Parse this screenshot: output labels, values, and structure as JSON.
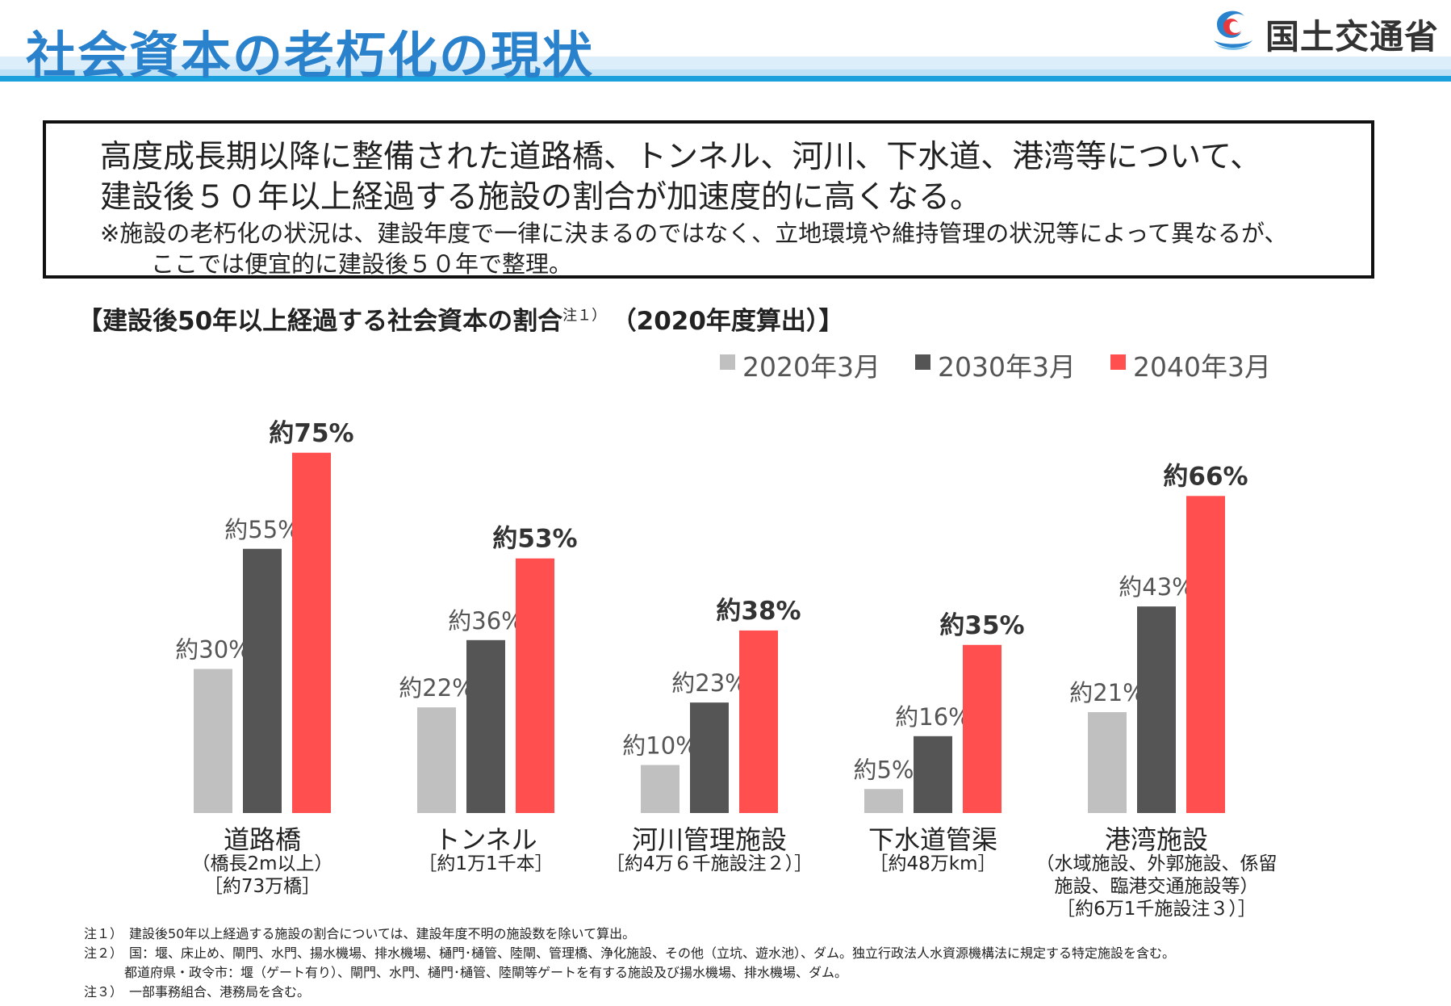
{
  "header": {
    "title": "社会資本の老朽化の現状",
    "ministry": "国土交通省"
  },
  "summary": {
    "line1": "高度成長期以降に整備された道路橋、トンネル、河川、下水道、港湾等について、",
    "line2": "建設後５０年以上経過する施設の割合が加速度的に高くなる。",
    "note1": "※施設の老朽化の状況は、建設年度で一律に決まるのではなく、立地環境や維持管理の状況等によって異なるが、",
    "note2": "ここでは便宜的に建設後５０年で整理。"
  },
  "chart_heading": {
    "main": "【建設後50年以上経過する社会資本の割合",
    "sup": "注１）",
    "year": "　（2020年度算出）】"
  },
  "colors": {
    "series_2020": "#c0c0c0",
    "series_2030": "#555555",
    "series_2040": "#ff4f4f",
    "title_blue": "#2a82cc"
  },
  "chart_data": {
    "type": "bar",
    "categories": [
      "道路橋",
      "トンネル",
      "河川管理施設",
      "下水道管渠",
      "港湾施設"
    ],
    "series": [
      {
        "name": "2020年3月",
        "values": [
          30,
          22,
          10,
          5,
          21
        ]
      },
      {
        "name": "2030年3月",
        "values": [
          55,
          36,
          23,
          16,
          43
        ]
      },
      {
        "name": "2040年3月",
        "values": [
          75,
          53,
          38,
          35,
          66
        ]
      }
    ],
    "data_labels": [
      [
        "約30%",
        "約22%",
        "約10%",
        "約5%",
        "約21%"
      ],
      [
        "約55%",
        "約36%",
        "約23%",
        "約16%",
        "約43%"
      ],
      [
        "約75%",
        "約53%",
        "約38%",
        "約35%",
        "約66%"
      ]
    ],
    "category_notes": [
      [
        "（橋長2m以上）",
        "［約73万橋］"
      ],
      [
        "［約1万1千本］"
      ],
      [
        "［約4万６千施設注２）］"
      ],
      [
        "［約48万km］"
      ],
      [
        "（水域施設、外郭施設、係留",
        "施設、臨港交通施設等）",
        "［約6万1千施設注３）］"
      ]
    ],
    "ylim": [
      0,
      100
    ],
    "legend": "top-right",
    "grid": false,
    "title": "【建設後50年以上経過する社会資本の割合注１）　（2020年度算出）】",
    "xlabel": "",
    "ylabel": ""
  },
  "footnotes": [
    "注１）　建設後50年以上経過する施設の割合については、建設年度不明の施設数を除いて算出。",
    "注２）　国：堰、床止め、閘門、水門、揚水機場、排水機場、樋門･樋管、陸閘、管理橋、浄化施設、その他（立坑、遊水池）、ダム。独立行政法人水資源機構法に規定する特定施設を含む。",
    "都道府県・政令市：堰（ゲート有り）、閘門、水門、樋門･樋管、陸閘等ゲートを有する施設及び揚水機場、排水機場、ダム。",
    "注３）　一部事務組合、港務局を含む。"
  ]
}
